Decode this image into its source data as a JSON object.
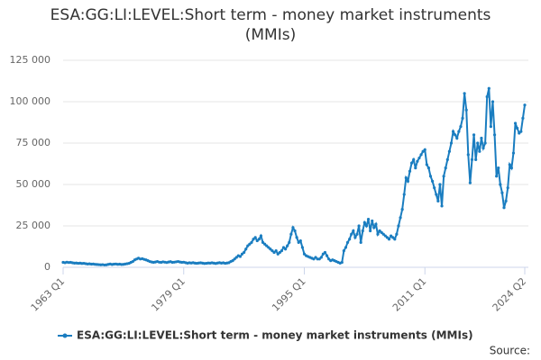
{
  "chart_data": {
    "type": "line",
    "title": "ESA:GG:LI:LEVEL:Short term - money market instruments (MMIs)",
    "source": "Source:",
    "categories": [
      "1963 Q1",
      null,
      null,
      null,
      null,
      null,
      null,
      null,
      null,
      null,
      null,
      null,
      null,
      null,
      null,
      null,
      null,
      null,
      null,
      null,
      null,
      null,
      null,
      null,
      null,
      null,
      null,
      null,
      null,
      null,
      null,
      null,
      null,
      null,
      null,
      null,
      null,
      null,
      null,
      null,
      null,
      null,
      null,
      null,
      null,
      null,
      null,
      null,
      null,
      null,
      null,
      null,
      null,
      null,
      null,
      null,
      null,
      null,
      null,
      null,
      null,
      null,
      null,
      null,
      "1979 Q1",
      null,
      null,
      null,
      null,
      null,
      null,
      null,
      null,
      null,
      null,
      null,
      null,
      null,
      null,
      null,
      null,
      null,
      null,
      null,
      null,
      null,
      null,
      null,
      null,
      null,
      null,
      null,
      null,
      null,
      null,
      null,
      null,
      null,
      null,
      null,
      null,
      null,
      null,
      null,
      null,
      null,
      null,
      null,
      null,
      null,
      null,
      null,
      null,
      null,
      null,
      null,
      null,
      null,
      null,
      null,
      null,
      null,
      null,
      null,
      null,
      null,
      null,
      null,
      "1995 Q1",
      null,
      null,
      null,
      null,
      null,
      null,
      null,
      null,
      null,
      null,
      null,
      null,
      null,
      null,
      null,
      null,
      null,
      null,
      null,
      null,
      null,
      null,
      null,
      null,
      null,
      null,
      null,
      null,
      null,
      null,
      null,
      null,
      null,
      null,
      null,
      null,
      null,
      null,
      null,
      null,
      null,
      null,
      null,
      null,
      null,
      null,
      null,
      null,
      null,
      null,
      null,
      null,
      null,
      null,
      null,
      null,
      null,
      null,
      null,
      null,
      null,
      null,
      null,
      "2011 Q1",
      null,
      null,
      null,
      null,
      null,
      null,
      null,
      null,
      null,
      null,
      null,
      null,
      null,
      null,
      null,
      null,
      null,
      null,
      null,
      null,
      null,
      null,
      null,
      null,
      null,
      null,
      null,
      null,
      null,
      null,
      null,
      null,
      null,
      null,
      null,
      null,
      null,
      null,
      null,
      null,
      null,
      null,
      null,
      null,
      null,
      null,
      null,
      null,
      null,
      null,
      null,
      null,
      "2024 Q2"
    ],
    "series": [
      {
        "name": "ESA:GG:LI:LEVEL:Short term - money market instruments (MMIs)",
        "color": "#1a7dc0",
        "values": [
          3000,
          2800,
          3100,
          2900,
          3000,
          2700,
          2500,
          2600,
          2400,
          2500,
          2300,
          2400,
          2200,
          2000,
          2100,
          1900,
          2000,
          1800,
          1700,
          1600,
          1500,
          1600,
          1400,
          1500,
          1800,
          2000,
          1700,
          1900,
          2000,
          1800,
          1900,
          1700,
          1800,
          2000,
          2200,
          2400,
          3000,
          3500,
          4500,
          5000,
          5500,
          5000,
          5200,
          4800,
          4500,
          4000,
          3500,
          3200,
          3000,
          3200,
          3500,
          3100,
          3000,
          3300,
          3100,
          2900,
          3200,
          3400,
          3000,
          3100,
          3300,
          3500,
          3200,
          3000,
          3100,
          2800,
          2500,
          2700,
          2600,
          2800,
          2500,
          2400,
          2600,
          2700,
          2500,
          2300,
          2400,
          2600,
          2500,
          2700,
          2500,
          2300,
          2600,
          2800,
          2500,
          2700,
          2400,
          2600,
          2800,
          3500,
          4000,
          5000,
          6000,
          7000,
          6500,
          8000,
          9000,
          11000,
          13000,
          14000,
          15000,
          17000,
          18000,
          16000,
          17000,
          19000,
          15000,
          14000,
          13000,
          12000,
          11000,
          10000,
          9000,
          10000,
          8000,
          9000,
          10000,
          12000,
          11000,
          13000,
          15000,
          20000,
          24000,
          22000,
          18000,
          15000,
          16000,
          12000,
          8000,
          7000,
          6500,
          6000,
          5500,
          5000,
          6000,
          5000,
          5000,
          6000,
          8000,
          9000,
          7000,
          5000,
          4000,
          4500,
          4000,
          3500,
          3000,
          2500,
          3000,
          10000,
          12000,
          15000,
          17000,
          20000,
          22000,
          18000,
          20000,
          25000,
          15000,
          22000,
          27000,
          25000,
          29000,
          22000,
          28000,
          24000,
          26000,
          20000,
          22000,
          21000,
          20000,
          19000,
          18000,
          17000,
          19000,
          18000,
          17000,
          20000,
          25000,
          30000,
          35000,
          44000,
          54000,
          52000,
          58000,
          63000,
          65000,
          60000,
          64000,
          66000,
          68000,
          70000,
          71000,
          62000,
          60000,
          55000,
          52000,
          48000,
          44000,
          40000,
          50000,
          37000,
          55000,
          60000,
          65000,
          70000,
          75000,
          82000,
          80000,
          78000,
          82000,
          85000,
          90000,
          105000,
          95000,
          68000,
          51000,
          65000,
          80000,
          65000,
          75000,
          70000,
          78000,
          72000,
          75000,
          103000,
          108000,
          85000,
          100000,
          80000,
          55000,
          60000,
          50000,
          45000,
          36000,
          40000,
          48000,
          62000,
          60000,
          69000,
          87000,
          84000,
          81000,
          82000,
          90000,
          98000
        ]
      }
    ],
    "ylim": [
      0,
      125000
    ],
    "yticks": [
      0,
      {
        "value": 25000,
        "label": "25 000"
      },
      {
        "value": 50000,
        "label": "50 000"
      },
      {
        "value": 75000,
        "label": "75 000"
      },
      {
        "value": 100000,
        "label": "100 000"
      },
      {
        "value": 125000,
        "label": "125 000"
      }
    ],
    "grid": true
  }
}
